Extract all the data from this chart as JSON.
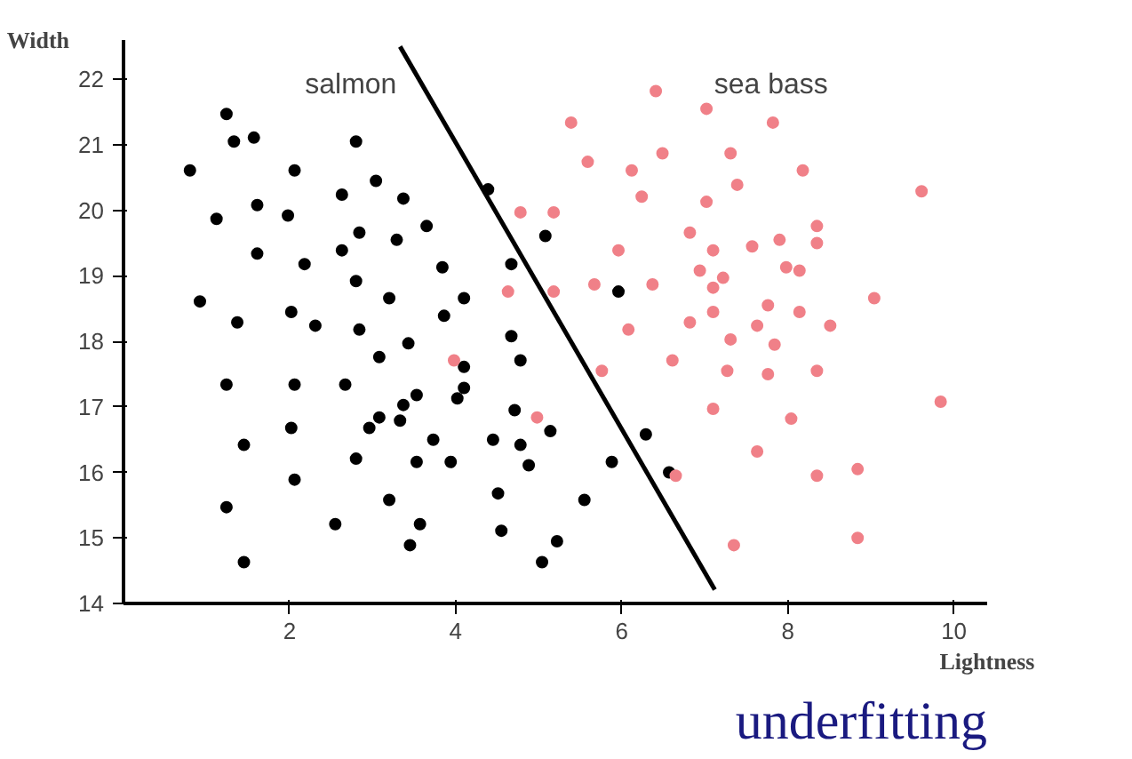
{
  "chart_data": {
    "type": "scatter",
    "xlabel": "Lightness",
    "ylabel": "Width",
    "xlim": [
      0,
      10.4
    ],
    "ylim": [
      14,
      22.6
    ],
    "xticks": [
      2,
      4,
      6,
      8,
      10
    ],
    "yticks": [
      14,
      15,
      16,
      17,
      18,
      19,
      20,
      21,
      22
    ],
    "grid": false,
    "legend": false,
    "marker": "circle",
    "annotations": [
      "underfitting"
    ],
    "series": [
      {
        "name": "salmon",
        "color": "#000000",
        "x": [
          1.24,
          1.33,
          1.57,
          2.8,
          0.8,
          2.06,
          3.04,
          4.39,
          1.12,
          1.61,
          1.98,
          2.63,
          3.37,
          2.84,
          3.29,
          3.65,
          5.08,
          1.61,
          2.18,
          2.63,
          3.84,
          4.67,
          2.8,
          3.2,
          0.92,
          4.1,
          1.37,
          2.02,
          2.31,
          2.84,
          3.86,
          5.96,
          4.67,
          3.43,
          3.08,
          4.1,
          4.78,
          1.24,
          2.06,
          2.67,
          4.1,
          3.53,
          3.37,
          4.02,
          4.71,
          3.08,
          3.33,
          2.96,
          2.02,
          5.14,
          6.29,
          1.45,
          3.73,
          4.45,
          4.78,
          2.8,
          3.53,
          3.94,
          4.88,
          5.88,
          6.57,
          2.06,
          3.2,
          4.51,
          5.55,
          1.24,
          2.55,
          3.57,
          4.55,
          5.22,
          3.45,
          5.04,
          1.45
        ],
        "values": [
          21.47,
          21.05,
          21.11,
          21.05,
          20.61,
          20.61,
          20.45,
          20.32,
          19.87,
          20.08,
          19.92,
          20.24,
          20.18,
          19.66,
          19.55,
          19.76,
          19.61,
          19.34,
          19.18,
          19.39,
          19.13,
          19.18,
          18.92,
          18.66,
          18.61,
          18.66,
          18.29,
          18.45,
          18.24,
          18.18,
          18.39,
          18.76,
          18.08,
          17.97,
          17.76,
          17.61,
          17.71,
          17.34,
          17.34,
          17.34,
          17.29,
          17.18,
          17.03,
          17.13,
          16.95,
          16.84,
          16.79,
          16.68,
          16.68,
          16.63,
          16.58,
          16.42,
          16.5,
          16.5,
          16.42,
          16.21,
          16.16,
          16.16,
          16.11,
          16.16,
          16.0,
          15.89,
          15.58,
          15.68,
          15.58,
          15.47,
          15.21,
          15.21,
          15.11,
          14.95,
          14.89,
          14.63,
          14.63
        ]
      },
      {
        "name": "sea bass",
        "color": "#f08088",
        "x": [
          5.39,
          5.59,
          4.78,
          5.18,
          4.63,
          5.18,
          5.67,
          6.41,
          7.02,
          7.82,
          6.12,
          6.49,
          7.31,
          8.18,
          7.39,
          6.24,
          7.02,
          9.61,
          8.35,
          6.82,
          7.9,
          8.35,
          5.96,
          7.1,
          7.57,
          6.94,
          7.22,
          7.98,
          8.14,
          7.1,
          6.37,
          9.04,
          7.76,
          8.14,
          7.1,
          6.82,
          7.63,
          8.51,
          6.08,
          7.31,
          7.84,
          3.98,
          4.98,
          5.76,
          6.61,
          7.27,
          7.76,
          8.35,
          9.84,
          7.1,
          8.04,
          7.63,
          6.65,
          8.35,
          8.84,
          7.35,
          8.84
        ],
        "values": [
          21.34,
          20.74,
          19.97,
          19.97,
          18.76,
          18.76,
          18.87,
          21.82,
          21.55,
          21.34,
          20.61,
          20.87,
          20.87,
          20.61,
          20.39,
          20.21,
          20.13,
          20.29,
          19.76,
          19.66,
          19.55,
          19.5,
          19.39,
          19.39,
          19.45,
          19.08,
          18.97,
          19.13,
          19.08,
          18.82,
          18.87,
          18.66,
          18.55,
          18.45,
          18.45,
          18.29,
          18.24,
          18.24,
          18.18,
          18.03,
          17.95,
          17.71,
          16.84,
          17.55,
          17.71,
          17.55,
          17.5,
          17.55,
          17.08,
          16.97,
          16.82,
          16.32,
          15.95,
          15.95,
          16.05,
          14.89,
          15.0
        ]
      },
      {
        "type": "line",
        "marker": "none",
        "color": "#000000",
        "x": [
          3.33,
          7.12
        ],
        "values": [
          22.5,
          14.21
        ]
      }
    ]
  }
}
